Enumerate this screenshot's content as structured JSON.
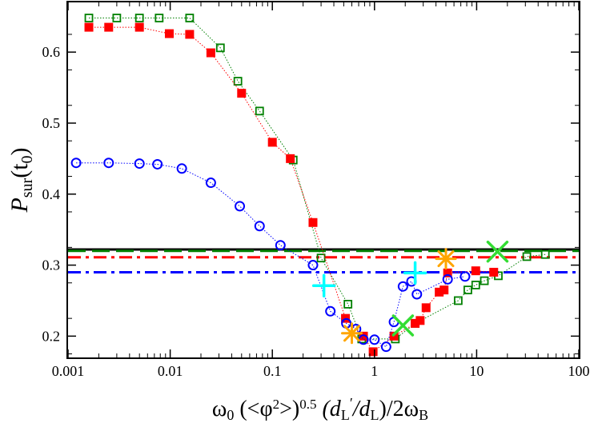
{
  "chart_data": {
    "type": "scatter",
    "xscale": "log",
    "xlim": [
      0.001,
      100
    ],
    "ylim": [
      0.17,
      0.67
    ],
    "xticks": [
      {
        "value": 0.001,
        "label": "0.001"
      },
      {
        "value": 0.01,
        "label": "0.01"
      },
      {
        "value": 0.1,
        "label": "0.1"
      },
      {
        "value": 1,
        "label": "1"
      },
      {
        "value": 10,
        "label": "10"
      },
      {
        "value": 100,
        "label": "100"
      }
    ],
    "yticks": [
      {
        "value": 0.2,
        "label": "0.2"
      },
      {
        "value": 0.3,
        "label": "0.3"
      },
      {
        "value": 0.4,
        "label": "0.4"
      },
      {
        "value": 0.5,
        "label": "0.5"
      },
      {
        "value": 0.6,
        "label": "0.6"
      }
    ],
    "xlabel": {
      "base": "ω",
      "parts": [
        "0",
        " (<φ",
        "2",
        ">)",
        "0.5",
        " (d",
        "L",
        "′",
        "/d",
        "L",
        ")/2ω",
        "B"
      ]
    },
    "ylabel": {
      "main": "P",
      "sub": "sur",
      "arg_open": "(t",
      "arg_sub": "0",
      "arg_close": ")"
    },
    "series": [
      {
        "marker": "open-square",
        "color": "#008000",
        "x": [
          0.0016,
          0.003,
          0.005,
          0.0078,
          0.0155,
          0.031,
          0.046,
          0.075,
          0.16,
          0.3,
          0.55,
          0.75,
          1.6,
          2.5,
          6.6,
          8.2,
          9.8,
          11.9,
          16.3,
          31,
          47
        ],
        "y": [
          0.648,
          0.648,
          0.648,
          0.648,
          0.648,
          0.606,
          0.559,
          0.517,
          0.448,
          0.31,
          0.245,
          0.196,
          0.196,
          0.218,
          0.25,
          0.265,
          0.272,
          0.278,
          0.285,
          0.312,
          0.315
        ]
      },
      {
        "marker": "filled-square",
        "color": "#ff0000",
        "x": [
          0.0016,
          0.0025,
          0.005,
          0.0098,
          0.0155,
          0.025,
          0.05,
          0.1,
          0.15,
          0.25,
          0.52,
          0.78,
          0.97,
          1.55,
          2.5,
          2.8,
          3.2,
          4.3,
          4.8,
          5.2,
          9.8,
          14.7
        ],
        "y": [
          0.635,
          0.635,
          0.635,
          0.626,
          0.625,
          0.599,
          0.542,
          0.473,
          0.45,
          0.36,
          0.225,
          0.2,
          0.178,
          0.2,
          0.218,
          0.222,
          0.24,
          0.262,
          0.265,
          0.289,
          0.292,
          0.29
        ]
      },
      {
        "marker": "open-circle",
        "color": "#0000ff",
        "x": [
          0.0012,
          0.0025,
          0.005,
          0.0075,
          0.013,
          0.025,
          0.048,
          0.075,
          0.12,
          0.25,
          0.37,
          0.53,
          0.66,
          0.78,
          1.0,
          1.3,
          1.55,
          1.9,
          2.3,
          2.6,
          5.2,
          7.7
        ],
        "y": [
          0.444,
          0.444,
          0.443,
          0.442,
          0.436,
          0.416,
          0.383,
          0.355,
          0.328,
          0.3,
          0.235,
          0.218,
          0.21,
          0.195,
          0.195,
          0.185,
          0.22,
          0.27,
          0.277,
          0.259,
          0.28,
          0.284
        ]
      }
    ],
    "lines": [
      {
        "y": 0.322,
        "color": "#000000",
        "style": "solid"
      },
      {
        "y": 0.32,
        "color": "#008000",
        "style": "dash"
      },
      {
        "y": 0.311,
        "color": "#ff0000",
        "style": "dashdot"
      },
      {
        "y": 0.29,
        "color": "#0000ff",
        "style": "dashdot"
      }
    ],
    "markers": [
      {
        "shape": "plus",
        "color": "#00ffff",
        "x": 0.32,
        "y": 0.271
      },
      {
        "shape": "plus",
        "color": "#00ffff",
        "x": 2.5,
        "y": 0.289
      },
      {
        "shape": "asterisk",
        "color": "#ffa500",
        "x": 0.6,
        "y": 0.204
      },
      {
        "shape": "asterisk",
        "color": "#ffa500",
        "x": 5.0,
        "y": 0.309
      },
      {
        "shape": "cross",
        "color": "#33dd33",
        "x": 1.9,
        "y": 0.215
      },
      {
        "shape": "cross",
        "color": "#33dd33",
        "x": 16.0,
        "y": 0.319
      }
    ]
  }
}
